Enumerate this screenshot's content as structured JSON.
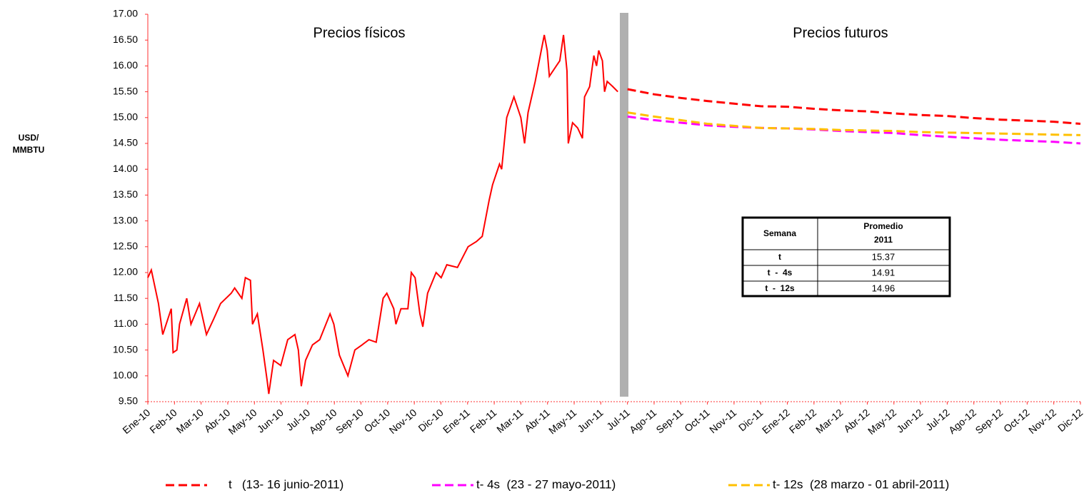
{
  "chart_data": {
    "type": "line",
    "y_label": [
      "USD/",
      "MMBTU"
    ],
    "annotations": [
      "Precios físicos",
      "Precios futuros"
    ],
    "xlim": [
      0,
      35
    ],
    "xticks": [
      {
        "value": 0,
        "label": "Ene-10"
      },
      {
        "value": 1,
        "label": "Feb-10"
      },
      {
        "value": 2,
        "label": "Mar-10"
      },
      {
        "value": 3,
        "label": "Abr-10"
      },
      {
        "value": 4,
        "label": "May-10"
      },
      {
        "value": 5,
        "label": "Jun-10"
      },
      {
        "value": 6,
        "label": "Jul-10"
      },
      {
        "value": 7,
        "label": "Ago-10"
      },
      {
        "value": 8,
        "label": "Sep-10"
      },
      {
        "value": 9,
        "label": "Oct-10"
      },
      {
        "value": 10,
        "label": "Nov-10"
      },
      {
        "value": 11,
        "label": "Dic-10"
      },
      {
        "value": 12,
        "label": "Ene-11"
      },
      {
        "value": 13,
        "label": "Feb-11"
      },
      {
        "value": 14,
        "label": "Mar-11"
      },
      {
        "value": 15,
        "label": "Abr-11"
      },
      {
        "value": 16,
        "label": "May-11"
      },
      {
        "value": 17,
        "label": "Jun-11"
      },
      {
        "value": 18,
        "label": "Jul-11"
      },
      {
        "value": 19,
        "label": "Ago-11"
      },
      {
        "value": 20,
        "label": "Sep-11"
      },
      {
        "value": 21,
        "label": "Oct-11"
      },
      {
        "value": 22,
        "label": "Nov-11"
      },
      {
        "value": 23,
        "label": "Dic-11"
      },
      {
        "value": 24,
        "label": "Ene-12"
      },
      {
        "value": 25,
        "label": "Feb-12"
      },
      {
        "value": 26,
        "label": "Mar-12"
      },
      {
        "value": 27,
        "label": "Abr-12"
      },
      {
        "value": 28,
        "label": "May-12"
      },
      {
        "value": 29,
        "label": "Jun-12"
      },
      {
        "value": 30,
        "label": "Jul-12"
      },
      {
        "value": 31,
        "label": "Ago-12"
      },
      {
        "value": 32,
        "label": "Sep-12"
      },
      {
        "value": 33,
        "label": "Oct-12"
      },
      {
        "value": 34,
        "label": "Nov-12"
      },
      {
        "value": 35,
        "label": "Dic-12"
      }
    ],
    "ylim": [
      9.5,
      17
    ],
    "yticks": [
      {
        "value": 9.5,
        "label": "9.50"
      },
      {
        "value": 10,
        "label": "10.00"
      },
      {
        "value": 10.5,
        "label": "10.50"
      },
      {
        "value": 11,
        "label": "11.00"
      },
      {
        "value": 11.5,
        "label": "11.50"
      },
      {
        "value": 12,
        "label": "12.00"
      },
      {
        "value": 12.5,
        "label": "12.50"
      },
      {
        "value": 13,
        "label": "13.00"
      },
      {
        "value": 13.5,
        "label": "13.50"
      },
      {
        "value": 14,
        "label": "14.00"
      },
      {
        "value": 14.5,
        "label": "14.50"
      },
      {
        "value": 15,
        "label": "15.00"
      },
      {
        "value": 15.5,
        "label": "15.50"
      },
      {
        "value": 16,
        "label": "16.00"
      },
      {
        "value": 16.5,
        "label": "16.50"
      },
      {
        "value": 17,
        "label": "17.00"
      }
    ],
    "grid": false,
    "physical": {
      "color": "#ff0000",
      "x": [
        0,
        0.13,
        0.4,
        0.56,
        0.88,
        0.95,
        1.09,
        1.19,
        1.46,
        1.62,
        1.94,
        2.2,
        2.47,
        2.73,
        3.13,
        3.26,
        3.53,
        3.66,
        3.85,
        3.93,
        4.11,
        4.32,
        4.48,
        4.54,
        4.72,
        4.99,
        5.25,
        5.52,
        5.65,
        5.76,
        5.92,
        6.18,
        6.45,
        6.84,
        6.98,
        7.19,
        7.51,
        7.77,
        8.04,
        8.3,
        8.57,
        8.83,
        8.97,
        9.23,
        9.31,
        9.5,
        9.76,
        9.89,
        10.03,
        10.21,
        10.32,
        10.5,
        10.82,
        11.01,
        11.22,
        11.62,
        12.02,
        12.33,
        12.55,
        12.81,
        12.94,
        13.2,
        13.28,
        13.47,
        13.74,
        14.0,
        14.14,
        14.27,
        14.54,
        14.88,
        14.99,
        15.07,
        15.33,
        15.46,
        15.6,
        15.73,
        15.78,
        15.94,
        16.13,
        16.31,
        16.39,
        16.58,
        16.74,
        16.84,
        16.92,
        17.06,
        17.14,
        17.24,
        17.45,
        17.64
      ],
      "values": [
        11.9,
        12.05,
        11.4,
        10.8,
        11.3,
        10.45,
        10.5,
        11.0,
        11.5,
        11.0,
        11.4,
        10.8,
        11.1,
        11.4,
        11.6,
        11.7,
        11.5,
        11.9,
        11.85,
        11.0,
        11.2,
        10.5,
        9.9,
        9.65,
        10.3,
        10.2,
        10.7,
        10.8,
        10.5,
        9.8,
        10.3,
        10.6,
        10.7,
        11.2,
        11.0,
        10.4,
        10.0,
        10.5,
        10.6,
        10.7,
        10.65,
        11.5,
        11.6,
        11.3,
        11.0,
        11.3,
        11.3,
        12.0,
        11.9,
        11.2,
        10.95,
        11.6,
        12.0,
        11.9,
        12.15,
        12.1,
        12.5,
        12.6,
        12.7,
        13.4,
        13.7,
        14.1,
        14.0,
        15.0,
        15.4,
        15.0,
        14.5,
        15.1,
        15.7,
        16.6,
        16.3,
        15.8,
        16.0,
        16.1,
        16.6,
        15.9,
        14.5,
        14.9,
        14.8,
        14.6,
        15.4,
        15.6,
        16.2,
        16.0,
        16.3,
        16.1,
        15.5,
        15.7,
        15.6,
        15.5
      ]
    },
    "series_x": [
      18,
      19,
      20,
      21,
      22,
      23,
      24,
      25,
      26,
      27,
      28,
      29,
      30,
      31,
      32,
      33,
      34,
      35
    ],
    "series": [
      {
        "name": "t   (13- 16 junio-2011)",
        "color": "#ff0000",
        "values": [
          15.55,
          15.45,
          15.38,
          15.32,
          15.27,
          15.22,
          15.21,
          15.17,
          15.14,
          15.12,
          15.08,
          15.05,
          15.03,
          14.99,
          14.96,
          14.94,
          14.92,
          14.88
        ]
      },
      {
        "name": "t- 4s  (23 - 27 mayo-2011)",
        "color": "#ff00ff",
        "values": [
          15.02,
          14.95,
          14.9,
          14.85,
          14.82,
          14.8,
          14.79,
          14.77,
          14.74,
          14.72,
          14.7,
          14.66,
          14.63,
          14.6,
          14.57,
          14.55,
          14.53,
          14.5
        ]
      },
      {
        "name": "t- 12s  (28 marzo - 01 abril-2011)",
        "color": "#ffc000",
        "values": [
          15.1,
          15.02,
          14.95,
          14.88,
          14.84,
          14.8,
          14.79,
          14.78,
          14.76,
          14.75,
          14.74,
          14.72,
          14.71,
          14.7,
          14.69,
          14.68,
          14.67,
          14.66
        ]
      }
    ],
    "table": {
      "header": [
        "Semana",
        "Promedio",
        "2011"
      ],
      "rows": [
        [
          "t",
          15.37
        ],
        [
          "t  -  4s",
          14.91
        ],
        [
          "t  -  12s",
          14.96
        ]
      ]
    }
  }
}
